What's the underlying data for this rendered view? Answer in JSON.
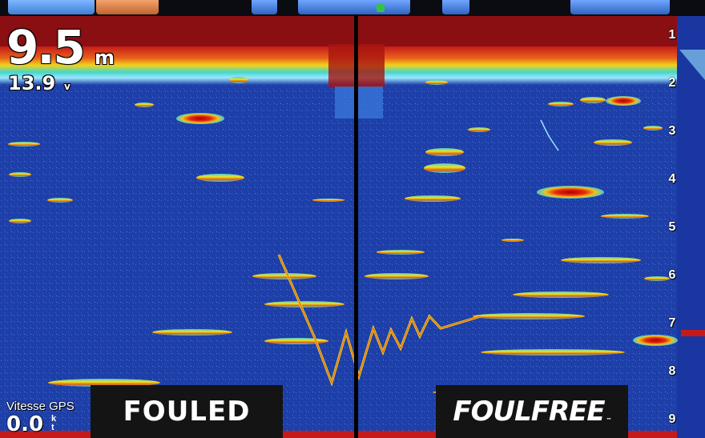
{
  "depth": {
    "value": "9.5",
    "unit": "m"
  },
  "voltage": {
    "value": "13.9",
    "unit": "v"
  },
  "speed": {
    "label": "Vitesse GPS",
    "value": "0.0",
    "unit": "k\nt"
  },
  "captions": {
    "left": "FOULED",
    "right": "FOULFREE",
    "right_mark": "™"
  },
  "depth_scale": [
    "1",
    "2",
    "3",
    "4",
    "5",
    "6",
    "7",
    "8",
    "9"
  ],
  "colors": {
    "water": "#1e3fa8",
    "strong_return": "#c21414",
    "caption_bg": "#141414"
  }
}
